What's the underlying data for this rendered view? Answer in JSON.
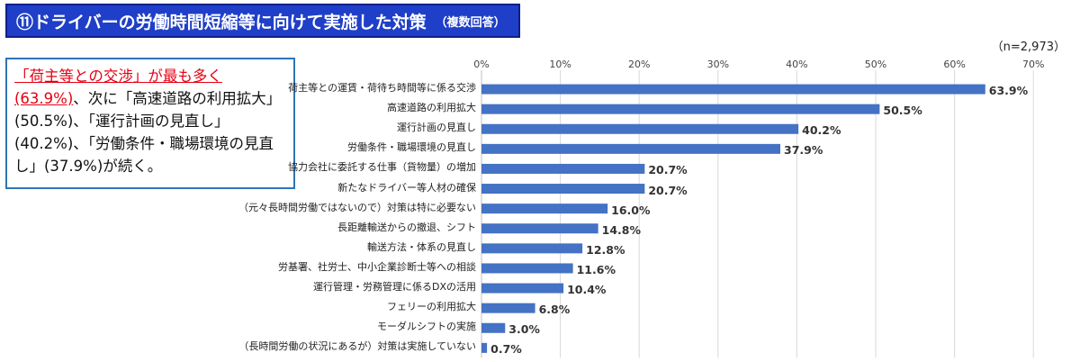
{
  "title": "⑪ドライバーの労働時間短縮等に向けて実施した対策",
  "title_note": "（複数回答）",
  "sample_size": "（n=2,973）",
  "callout": {
    "highlight": "「荷主等との交渉」が最も多く(63.9%)",
    "rest": "、次に「高速道路の利用拡大」(50.5%)、「運行計画の見直し」(40.2%)、「労働条件・職場環境の見直し」(37.9%)が続く。"
  },
  "colors": {
    "bar": "#4472c4",
    "title_bg": "#1f3fc8",
    "highlight": "#e60012",
    "callout_border": "#2e75b6"
  },
  "chart_data": {
    "type": "bar",
    "orientation": "horizontal",
    "xlim": [
      0,
      70
    ],
    "ticks": [
      "0%",
      "10%",
      "20%",
      "30%",
      "40%",
      "50%",
      "60%",
      "70%"
    ],
    "grid": true,
    "categories": [
      "荷主等との運賃・荷待ち時間等に係る交渉",
      "高速道路の利用拡大",
      "運行計画の見直し",
      "労働条件・職場環境の見直し",
      "協力会社に委託する仕事（貨物量）の増加",
      "新たなドライバー等人材の確保",
      "（元々長時間労働ではないので）対策は特に必要ない",
      "長距離輸送からの撤退、シフト",
      "輸送方法・体系の見直し",
      "労基署、社労士、中小企業診断士等への相談",
      "運行管理・労務管理に係るDXの活用",
      "フェリーの利用拡大",
      "モーダルシフトの実施",
      "（長時間労働の状況にあるが）対策は実施していない"
    ],
    "values": [
      63.9,
      50.5,
      40.2,
      37.9,
      20.7,
      20.7,
      16.0,
      14.8,
      12.8,
      11.6,
      10.4,
      6.8,
      3.0,
      0.7
    ],
    "value_labels": [
      "63.9%",
      "50.5%",
      "40.2%",
      "37.9%",
      "20.7%",
      "20.7%",
      "16.0%",
      "14.8%",
      "12.8%",
      "11.6%",
      "10.4%",
      "6.8%",
      "3.0%",
      "0.7%"
    ]
  }
}
